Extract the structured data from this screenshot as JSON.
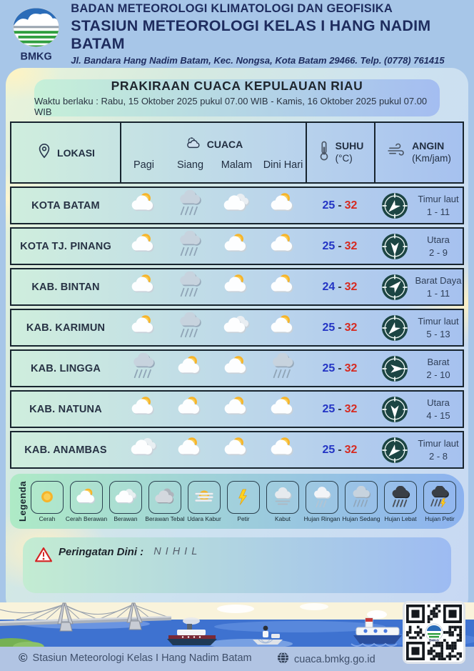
{
  "header": {
    "logo_text": "BMKG",
    "agency_line1": "BADAN METEOROLOGI KLIMATOLOGI DAN GEOFISIKA",
    "agency_line2": "STASIUN METEOROLOGI KELAS I HANG NADIM BATAM",
    "address": "Jl. Bandara Hang Nadim Batam, Kec. Nongsa, Kota Batam 29466.  Telp. (0778) 761415"
  },
  "title_card": {
    "title": "PRAKIRAAN CUACA KEPULAUAN RIAU",
    "validity": "Waktu berlaku : Rabu, 15 Oktober 2025 pukul 07.00 WIB - Kamis, 16 Oktober 2025 pukul 07.00 WIB"
  },
  "table": {
    "header": {
      "location_label": "LOKASI",
      "weather_label": "CUACA",
      "temp_label": "SUHU",
      "temp_unit": "(°C)",
      "wind_label": "ANGIN",
      "wind_unit": "(Km/jam)",
      "time_labels": [
        "Pagi",
        "Siang",
        "Malam",
        "Dini Hari"
      ]
    },
    "temp_separator": "-",
    "rows": [
      {
        "location": "KOTA BATAM",
        "weather": [
          "cerah-berawan",
          "hujan-sedang",
          "berawan",
          "cerah-berawan"
        ],
        "temp_min": "25",
        "temp_max": "32",
        "wind_direction": "Timur laut",
        "wind_speed": "1 - 11",
        "arrow_deg": 225
      },
      {
        "location": "KOTA TJ. PINANG",
        "weather": [
          "cerah-berawan",
          "hujan-sedang",
          "cerah-berawan",
          "cerah-berawan"
        ],
        "temp_min": "25",
        "temp_max": "32",
        "wind_direction": "Utara",
        "wind_speed": "2 - 9",
        "arrow_deg": 180
      },
      {
        "location": "KAB. BINTAN",
        "weather": [
          "cerah-berawan",
          "hujan-sedang",
          "cerah-berawan",
          "cerah-berawan"
        ],
        "temp_min": "24",
        "temp_max": "32",
        "wind_direction": "Barat Daya",
        "wind_speed": "1 - 11",
        "arrow_deg": 45
      },
      {
        "location": "KAB. KARIMUN",
        "weather": [
          "cerah-berawan",
          "hujan-sedang",
          "berawan",
          "cerah-berawan"
        ],
        "temp_min": "25",
        "temp_max": "32",
        "wind_direction": "Timur laut",
        "wind_speed": "5 - 13",
        "arrow_deg": 225
      },
      {
        "location": "KAB. LINGGA",
        "weather": [
          "hujan-sedang",
          "cerah-berawan",
          "cerah-berawan",
          "hujan-sedang"
        ],
        "temp_min": "25",
        "temp_max": "32",
        "wind_direction": "Barat",
        "wind_speed": "2 - 10",
        "arrow_deg": 90
      },
      {
        "location": "KAB. NATUNA",
        "weather": [
          "cerah-berawan",
          "cerah-berawan",
          "cerah-berawan",
          "cerah-berawan"
        ],
        "temp_min": "25",
        "temp_max": "32",
        "wind_direction": "Utara",
        "wind_speed": "4 - 15",
        "arrow_deg": 180
      },
      {
        "location": "KAB. ANAMBAS",
        "weather": [
          "berawan",
          "cerah-berawan",
          "cerah-berawan",
          "cerah-berawan"
        ],
        "temp_min": "25",
        "temp_max": "32",
        "wind_direction": "Timur laut",
        "wind_speed": "2 - 8",
        "arrow_deg": 225
      }
    ]
  },
  "legend": {
    "label": "Legenda",
    "items": [
      {
        "name": "Cerah",
        "icon": "cerah"
      },
      {
        "name": "Cerah Berawan",
        "icon": "cerah-berawan"
      },
      {
        "name": "Berawan",
        "icon": "berawan"
      },
      {
        "name": "Berawan Tebal",
        "icon": "berawan-tebal"
      },
      {
        "name": "Udara Kabur",
        "icon": "udara-kabur"
      },
      {
        "name": "Petir",
        "icon": "petir"
      },
      {
        "name": "Kabut",
        "icon": "kabut"
      },
      {
        "name": "Hujan Ringan",
        "icon": "hujan-ringan"
      },
      {
        "name": "Hujan Sedang",
        "icon": "hujan-sedang"
      },
      {
        "name": "Hujan Lebat",
        "icon": "hujan-lebat"
      },
      {
        "name": "Hujan Petir",
        "icon": "hujan-petir"
      }
    ]
  },
  "warning": {
    "label": "Peringatan Dini :",
    "value": "NIHIL"
  },
  "footer": {
    "copyright_symbol": "©",
    "copyright": "Stasiun Meteorologi Kelas I Hang Nadim Batam",
    "website": "cuaca.bmkg.go.id"
  },
  "colors": {
    "page_background": "#a7c6e8",
    "navy_text": "#1e2c5e",
    "table_border": "#17242e",
    "temp_min_color": "#2334c4",
    "temp_max_color": "#d62a20",
    "compass_fill": "#1c4543",
    "warning_red": "#d42222",
    "sea_blue": "#3e72d0",
    "bottom_bar": "#b1c4e3"
  }
}
